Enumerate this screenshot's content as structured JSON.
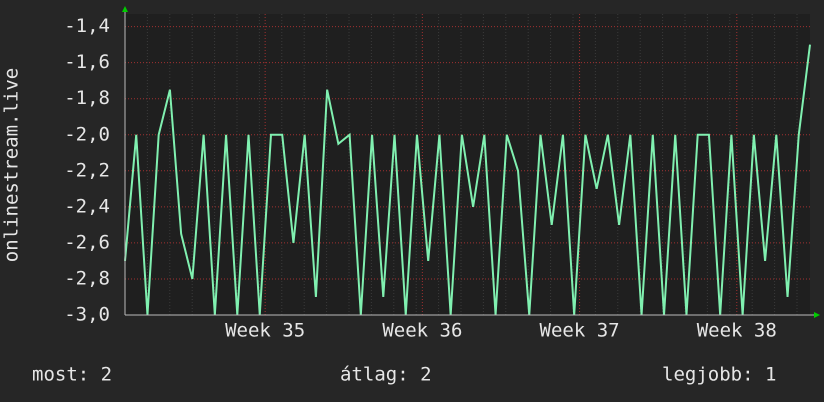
{
  "chart_data": {
    "type": "line",
    "y_label": "onlinestream.live",
    "x": [
      0,
      0.5,
      1,
      1.5,
      2,
      2.5,
      3,
      3.5,
      4,
      4.5,
      5,
      5.5,
      6,
      6.5,
      7,
      7.5,
      8,
      8.5,
      9,
      9.5,
      10,
      10.5,
      11,
      11.5,
      12,
      12.5,
      13,
      13.5,
      14,
      14.5,
      15,
      15.5,
      16,
      16.5,
      17,
      17.5,
      18,
      18.5,
      19,
      19.5,
      20,
      20.5,
      21,
      21.5,
      22,
      22.5,
      23,
      23.5,
      24,
      24.5,
      25,
      25.5,
      26,
      26.5,
      27,
      27.5,
      28,
      28.5,
      29,
      29.5,
      30,
      30.5
    ],
    "series": [
      {
        "color": "#80f0b0",
        "values": [
          -2.7,
          -2.0,
          -3.0,
          -2.0,
          -1.75,
          -2.55,
          -2.8,
          -2.0,
          -3.0,
          -2.0,
          -3.0,
          -2.0,
          -3.0,
          -2.0,
          -2.0,
          -2.6,
          -2.0,
          -2.9,
          -1.75,
          -2.05,
          -2.0,
          -3.0,
          -2.0,
          -2.9,
          -2.0,
          -3.0,
          -2.0,
          -2.7,
          -2.0,
          -3.0,
          -2.0,
          -2.4,
          -2.0,
          -3.0,
          -2.0,
          -2.2,
          -3.0,
          -2.0,
          -2.5,
          -2.0,
          -3.0,
          -2.0,
          -2.3,
          -2.0,
          -2.5,
          -2.0,
          -3.0,
          -2.0,
          -3.0,
          -2.0,
          -3.0,
          -2.0,
          -2.0,
          -3.0,
          -2.0,
          -3.0,
          -2.0,
          -2.7,
          -2.0,
          -2.9,
          -2.0,
          -1.5
        ]
      }
    ],
    "xlim": [
      0,
      30.5
    ],
    "xticks": [
      {
        "value": 6.24,
        "label": "Week 35"
      },
      {
        "value": 13.24,
        "label": "Week 36"
      },
      {
        "value": 20.24,
        "label": "Week 37"
      },
      {
        "value": 27.24,
        "label": "Week 38"
      }
    ],
    "ylim": [
      -3.0,
      -1.33
    ],
    "yticks": [
      {
        "value": -3.0,
        "label": "-3,0"
      },
      {
        "value": -2.8,
        "label": "-2,8"
      },
      {
        "value": -2.6,
        "label": "-2,6"
      },
      {
        "value": -2.4,
        "label": "-2,4"
      },
      {
        "value": -2.2,
        "label": "-2,2"
      },
      {
        "value": -2.0,
        "label": "-2,0"
      },
      {
        "value": -1.8,
        "label": "-1,8"
      },
      {
        "value": -1.6,
        "label": "-1,6"
      },
      {
        "value": -1.4,
        "label": "-1,4"
      }
    ],
    "grid": true,
    "stats": [
      "most: 2",
      "átlag: 2",
      "legjobb: 1"
    ]
  }
}
